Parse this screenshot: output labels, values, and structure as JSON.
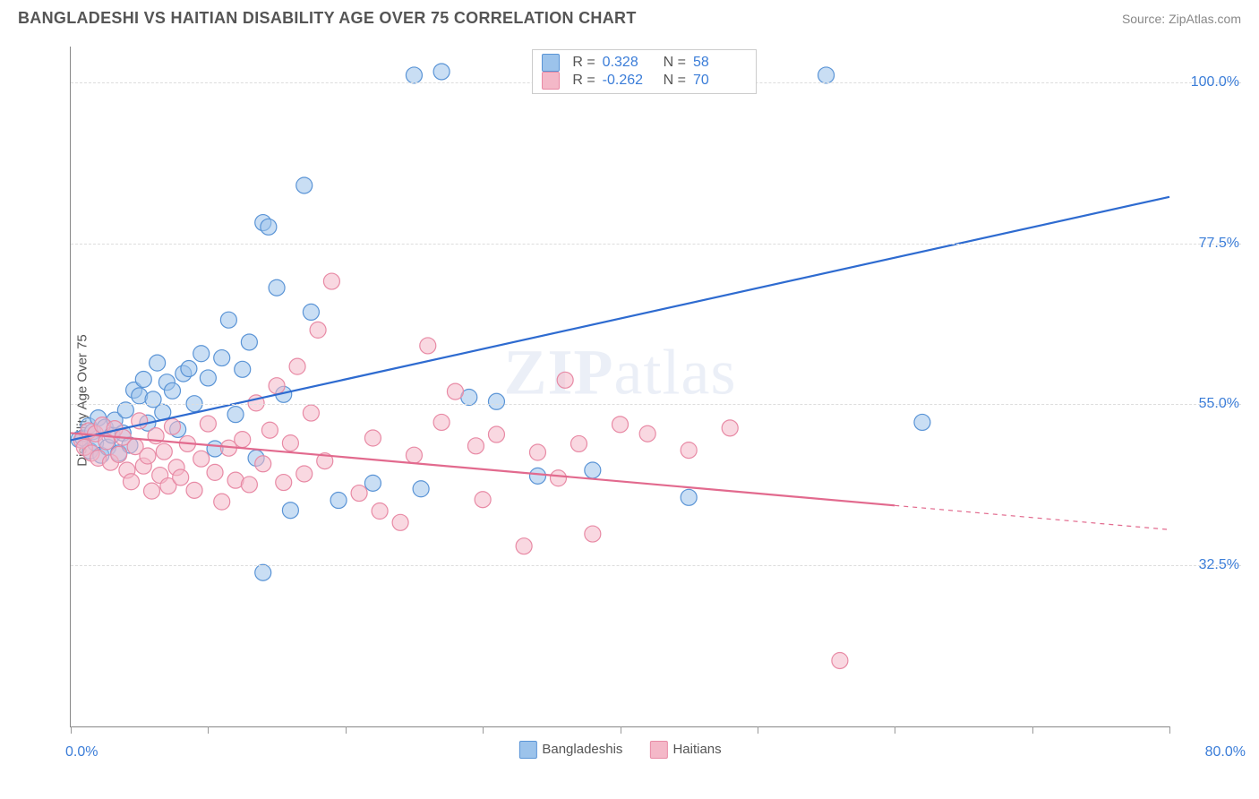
{
  "title": "BANGLADESHI VS HAITIAN DISABILITY AGE OVER 75 CORRELATION CHART",
  "source_label": "Source:",
  "source_name": "ZipAtlas.com",
  "ylabel": "Disability Age Over 75",
  "watermark_a": "ZIP",
  "watermark_b": "atlas",
  "chart": {
    "type": "scatter",
    "xlim": [
      0,
      80
    ],
    "ylim": [
      10,
      105
    ],
    "x_min_label": "0.0%",
    "x_max_label": "80.0%",
    "y_ticks": [
      32.5,
      55.0,
      77.5,
      100.0
    ],
    "y_tick_labels": [
      "32.5%",
      "55.0%",
      "77.5%",
      "100.0%"
    ],
    "x_tick_positions": [
      0,
      10,
      20,
      30,
      40,
      50,
      60,
      70,
      80
    ],
    "grid_color": "#dddddd",
    "axis_color": "#888888",
    "background": "#ffffff",
    "marker_radius": 9,
    "marker_opacity": 0.55,
    "line_width": 2.2,
    "series": [
      {
        "name": "Bangladeshis",
        "color_fill": "#9cc3eb",
        "color_stroke": "#5a94d6",
        "line_color": "#2e6bd0",
        "R": "0.328",
        "N": "58",
        "trend": {
          "x1": 0,
          "y1": 50,
          "x2": 80,
          "y2": 84,
          "dash_from_x": null
        },
        "points": [
          [
            0.6,
            50.1
          ],
          [
            0.9,
            50.3
          ],
          [
            1.3,
            52.0
          ],
          [
            1.4,
            48.5
          ],
          [
            1.6,
            51.2
          ],
          [
            1.8,
            49.6
          ],
          [
            2.0,
            53.1
          ],
          [
            2.2,
            47.9
          ],
          [
            2.5,
            51.8
          ],
          [
            2.7,
            49.0
          ],
          [
            3.0,
            50.7
          ],
          [
            3.2,
            52.8
          ],
          [
            3.5,
            48.2
          ],
          [
            3.8,
            51.0
          ],
          [
            4.0,
            54.2
          ],
          [
            4.3,
            49.3
          ],
          [
            4.6,
            57.0
          ],
          [
            5.0,
            56.2
          ],
          [
            5.3,
            58.5
          ],
          [
            5.6,
            52.4
          ],
          [
            6.0,
            55.7
          ],
          [
            6.3,
            60.8
          ],
          [
            6.7,
            53.9
          ],
          [
            7.0,
            58.1
          ],
          [
            7.4,
            56.9
          ],
          [
            7.8,
            51.5
          ],
          [
            8.2,
            59.3
          ],
          [
            8.6,
            60.0
          ],
          [
            9.0,
            55.1
          ],
          [
            9.5,
            62.1
          ],
          [
            10.0,
            58.7
          ],
          [
            10.5,
            48.8
          ],
          [
            11.0,
            61.5
          ],
          [
            11.5,
            66.8
          ],
          [
            12.0,
            53.6
          ],
          [
            12.5,
            59.9
          ],
          [
            13.0,
            63.7
          ],
          [
            14.0,
            80.4
          ],
          [
            14.4,
            79.8
          ],
          [
            15.0,
            71.3
          ],
          [
            15.5,
            56.4
          ],
          [
            16.0,
            40.2
          ],
          [
            17.0,
            85.6
          ],
          [
            17.5,
            67.9
          ],
          [
            19.5,
            41.6
          ],
          [
            22.0,
            44.0
          ],
          [
            25.0,
            101.0
          ],
          [
            25.5,
            43.2
          ],
          [
            27.0,
            101.5
          ],
          [
            29.0,
            56.0
          ],
          [
            31.0,
            55.4
          ],
          [
            34.0,
            45.0
          ],
          [
            38.0,
            45.8
          ],
          [
            14.0,
            31.5
          ],
          [
            55.0,
            101.0
          ],
          [
            62.0,
            52.5
          ],
          [
            45.0,
            42.0
          ],
          [
            13.5,
            47.5
          ]
        ]
      },
      {
        "name": "Haitians",
        "color_fill": "#f4b8c8",
        "color_stroke": "#e88aa5",
        "line_color": "#e26a8e",
        "R": "-0.262",
        "N": "70",
        "trend": {
          "x1": 0,
          "y1": 51,
          "x2": 80,
          "y2": 37.5,
          "dash_from_x": 60
        },
        "points": [
          [
            0.8,
            50.0
          ],
          [
            1.0,
            49.0
          ],
          [
            1.3,
            51.3
          ],
          [
            1.5,
            48.2
          ],
          [
            1.8,
            50.9
          ],
          [
            2.0,
            47.5
          ],
          [
            2.3,
            52.1
          ],
          [
            2.6,
            49.8
          ],
          [
            2.9,
            46.9
          ],
          [
            3.2,
            51.6
          ],
          [
            3.5,
            48.0
          ],
          [
            3.8,
            50.4
          ],
          [
            4.1,
            45.8
          ],
          [
            4.4,
            44.2
          ],
          [
            4.7,
            49.1
          ],
          [
            5.0,
            52.7
          ],
          [
            5.3,
            46.4
          ],
          [
            5.6,
            47.8
          ],
          [
            5.9,
            42.9
          ],
          [
            6.2,
            50.6
          ],
          [
            6.5,
            45.1
          ],
          [
            6.8,
            48.4
          ],
          [
            7.1,
            43.6
          ],
          [
            7.4,
            51.9
          ],
          [
            7.7,
            46.2
          ],
          [
            8.0,
            44.8
          ],
          [
            8.5,
            49.5
          ],
          [
            9.0,
            43.0
          ],
          [
            9.5,
            47.4
          ],
          [
            10.0,
            52.3
          ],
          [
            10.5,
            45.5
          ],
          [
            11.0,
            41.4
          ],
          [
            11.5,
            48.9
          ],
          [
            12.0,
            44.4
          ],
          [
            12.5,
            50.1
          ],
          [
            13.0,
            43.8
          ],
          [
            13.5,
            55.2
          ],
          [
            14.0,
            46.7
          ],
          [
            14.5,
            51.4
          ],
          [
            15.0,
            57.6
          ],
          [
            15.5,
            44.1
          ],
          [
            16.0,
            49.6
          ],
          [
            16.5,
            60.3
          ],
          [
            17.0,
            45.3
          ],
          [
            17.5,
            53.8
          ],
          [
            18.0,
            65.4
          ],
          [
            18.5,
            47.1
          ],
          [
            19.0,
            72.2
          ],
          [
            21.0,
            42.6
          ],
          [
            22.0,
            50.3
          ],
          [
            22.5,
            40.1
          ],
          [
            24.0,
            38.5
          ],
          [
            25.0,
            47.9
          ],
          [
            26.0,
            63.2
          ],
          [
            27.0,
            52.5
          ],
          [
            28.0,
            56.8
          ],
          [
            29.5,
            49.2
          ],
          [
            30.0,
            41.7
          ],
          [
            31.0,
            50.8
          ],
          [
            33.0,
            35.2
          ],
          [
            34.0,
            48.3
          ],
          [
            35.5,
            44.7
          ],
          [
            36.0,
            58.4
          ],
          [
            37.0,
            49.5
          ],
          [
            40.0,
            52.2
          ],
          [
            42.0,
            50.9
          ],
          [
            45.0,
            48.6
          ],
          [
            48.0,
            51.7
          ],
          [
            56.0,
            19.2
          ],
          [
            38.0,
            36.9
          ]
        ]
      }
    ]
  },
  "legend_bottom": [
    {
      "label": "Bangladeshis",
      "fill": "#9cc3eb",
      "stroke": "#5a94d6"
    },
    {
      "label": "Haitians",
      "fill": "#f4b8c8",
      "stroke": "#e88aa5"
    }
  ]
}
